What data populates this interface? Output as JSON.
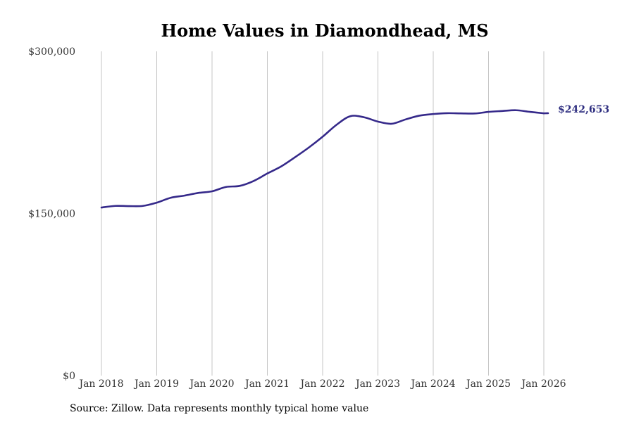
{
  "chart_data": {
    "type": "line",
    "title": "Home Values in Diamondhead, MS",
    "xlabel": "",
    "ylabel": "",
    "x_range": [
      "2018-01",
      "2026-01"
    ],
    "ylim": [
      0,
      300000
    ],
    "y_ticks": [
      {
        "value": 0,
        "label": "$0"
      },
      {
        "value": 150000,
        "label": "$150,000"
      },
      {
        "value": 300000,
        "label": "$300,000"
      }
    ],
    "x_ticks": [
      {
        "date": "2018-01",
        "label": "Jan 2018"
      },
      {
        "date": "2019-01",
        "label": "Jan 2019"
      },
      {
        "date": "2020-01",
        "label": "Jan 2020"
      },
      {
        "date": "2021-01",
        "label": "Jan 2021"
      },
      {
        "date": "2022-01",
        "label": "Jan 2022"
      },
      {
        "date": "2023-01",
        "label": "Jan 2023"
      },
      {
        "date": "2024-01",
        "label": "Jan 2024"
      },
      {
        "date": "2025-01",
        "label": "Jan 2025"
      },
      {
        "date": "2026-01",
        "label": "Jan 2026"
      }
    ],
    "grid": {
      "vertical": true,
      "horizontal": false
    },
    "series": [
      {
        "color": "#35298a",
        "points": [
          [
            "2018-01",
            155500
          ],
          [
            "2018-04",
            157000
          ],
          [
            "2018-07",
            156800
          ],
          [
            "2018-10",
            157000
          ],
          [
            "2019-01",
            160000
          ],
          [
            "2019-04",
            164500
          ],
          [
            "2019-07",
            166500
          ],
          [
            "2019-10",
            169000
          ],
          [
            "2020-01",
            170500
          ],
          [
            "2020-04",
            174500
          ],
          [
            "2020-07",
            175500
          ],
          [
            "2020-10",
            180000
          ],
          [
            "2021-01",
            187000
          ],
          [
            "2021-04",
            193500
          ],
          [
            "2021-07",
            202000
          ],
          [
            "2021-10",
            211000
          ],
          [
            "2022-01",
            221000
          ],
          [
            "2022-04",
            232000
          ],
          [
            "2022-07",
            240000
          ],
          [
            "2022-10",
            239000
          ],
          [
            "2023-01",
            235000
          ],
          [
            "2023-04",
            233000
          ],
          [
            "2023-07",
            237000
          ],
          [
            "2023-10",
            240500
          ],
          [
            "2024-01",
            242000
          ],
          [
            "2024-04",
            242800
          ],
          [
            "2024-07",
            242600
          ],
          [
            "2024-10",
            242500
          ],
          [
            "2025-01",
            244000
          ],
          [
            "2025-04",
            244800
          ],
          [
            "2025-07",
            245500
          ],
          [
            "2025-10",
            244000
          ],
          [
            "2026-01",
            242653
          ]
        ]
      }
    ],
    "end_label": {
      "text": "$242,653",
      "color": "#2e2e80"
    }
  },
  "source_note": "Source: Zillow. Data represents monthly typical home value"
}
